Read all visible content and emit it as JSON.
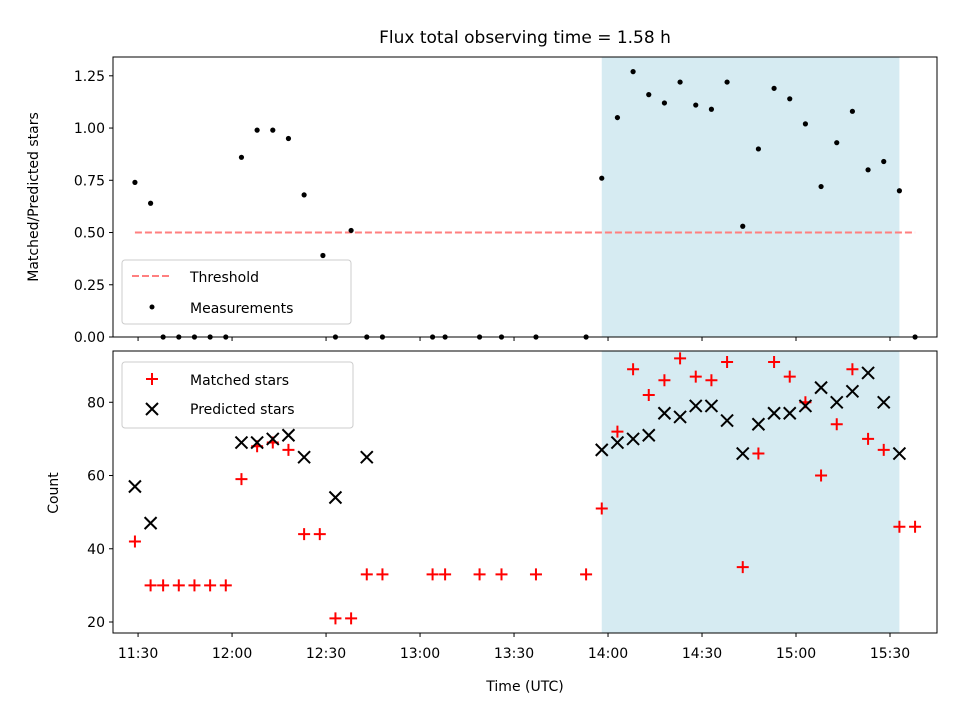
{
  "colors": {
    "threshold": "#ff7f7f",
    "measurement": "#000000",
    "matched": "#ff0000",
    "predicted": "#000000",
    "highlight": "#add8e6"
  },
  "chart_data": [
    {
      "type": "scatter",
      "title": "Flux total observing time = 1.58 h",
      "xlabel": "",
      "ylabel": "Matched/Predicted stars",
      "xlim": [
        "11:22",
        "15:45"
      ],
      "ylim": [
        0,
        1.34
      ],
      "y_ticks": [
        "0.00",
        "0.25",
        "0.50",
        "0.75",
        "1.00",
        "1.25"
      ],
      "highlight_span": [
        "13:58",
        "15:33"
      ],
      "legend": {
        "placement": "lower-left",
        "entries": [
          "Threshold",
          "Measurements"
        ]
      },
      "threshold": {
        "name": "Threshold",
        "value": 0.5,
        "x": [
          "11:29",
          "15:38"
        ],
        "style": "dashed"
      },
      "series": [
        {
          "name": "Measurements",
          "marker": "dot",
          "x": [
            "11:29",
            "11:34",
            "11:38",
            "11:43",
            "11:48",
            "11:53",
            "11:58",
            "12:03",
            "12:08",
            "12:13",
            "12:18",
            "12:23",
            "12:29",
            "12:33",
            "12:38",
            "12:43",
            "12:48",
            "13:04",
            "13:08",
            "13:19",
            "13:26",
            "13:37",
            "13:53",
            "13:58",
            "14:03",
            "14:08",
            "14:13",
            "14:18",
            "14:23",
            "14:28",
            "14:33",
            "14:38",
            "14:43",
            "14:48",
            "14:53",
            "14:58",
            "15:03",
            "15:08",
            "15:13",
            "15:18",
            "15:23",
            "15:28",
            "15:33",
            "15:38"
          ],
          "y": [
            0.74,
            0.64,
            0,
            0,
            0,
            0,
            0,
            0.86,
            0.99,
            0.99,
            0.95,
            0.68,
            0.39,
            0,
            0.51,
            0,
            0,
            0,
            0,
            0,
            0,
            0,
            0,
            0.76,
            1.05,
            1.27,
            1.16,
            1.12,
            1.22,
            1.11,
            1.09,
            1.22,
            0.53,
            0.9,
            1.19,
            1.14,
            1.02,
            0.72,
            0.93,
            1.08,
            0.8,
            0.84,
            0.7,
            0
          ]
        }
      ]
    },
    {
      "type": "scatter",
      "xlabel": "Time (UTC)",
      "ylabel": "Count",
      "xlim": [
        "11:22",
        "15:45"
      ],
      "ylim": [
        17,
        94
      ],
      "x_ticks": [
        "11:30",
        "12:00",
        "12:30",
        "13:00",
        "13:30",
        "14:00",
        "14:30",
        "15:00",
        "15:30"
      ],
      "y_ticks": [
        "20",
        "40",
        "60",
        "80"
      ],
      "highlight_span": [
        "13:58",
        "15:33"
      ],
      "legend": {
        "placement": "upper-left",
        "entries": [
          "Matched stars",
          "Predicted stars"
        ]
      },
      "series": [
        {
          "name": "Matched stars",
          "marker": "plus",
          "x": [
            "11:29",
            "11:34",
            "11:38",
            "11:43",
            "11:48",
            "11:53",
            "11:58",
            "12:03",
            "12:08",
            "12:13",
            "12:18",
            "12:23",
            "12:28",
            "12:33",
            "12:38",
            "12:43",
            "12:48",
            "13:04",
            "13:08",
            "13:19",
            "13:26",
            "13:37",
            "13:53",
            "13:58",
            "14:03",
            "14:08",
            "14:13",
            "14:18",
            "14:23",
            "14:28",
            "14:33",
            "14:38",
            "14:43",
            "14:48",
            "14:53",
            "14:58",
            "15:03",
            "15:08",
            "15:13",
            "15:18",
            "15:23",
            "15:28",
            "15:33",
            "15:38"
          ],
          "y": [
            42,
            30,
            30,
            30,
            30,
            30,
            30,
            59,
            68,
            69,
            67,
            44,
            44,
            21,
            21,
            33,
            33,
            33,
            33,
            33,
            33,
            33,
            33,
            51,
            72,
            89,
            82,
            86,
            92,
            87,
            86,
            91,
            35,
            66,
            91,
            87,
            80,
            60,
            74,
            89,
            70,
            67,
            46,
            46
          ]
        },
        {
          "name": "Predicted stars",
          "marker": "x",
          "x": [
            "11:29",
            "11:34",
            "12:03",
            "12:08",
            "12:13",
            "12:18",
            "12:23",
            "12:33",
            "12:43",
            "13:58",
            "14:03",
            "14:08",
            "14:13",
            "14:18",
            "14:23",
            "14:28",
            "14:33",
            "14:38",
            "14:43",
            "14:48",
            "14:53",
            "14:58",
            "15:03",
            "15:08",
            "15:13",
            "15:18",
            "15:23",
            "15:28",
            "15:33"
          ],
          "y": [
            57,
            47,
            69,
            69,
            70,
            71,
            65,
            54,
            65,
            67,
            69,
            70,
            71,
            77,
            76,
            79,
            79,
            75,
            66,
            74,
            77,
            77,
            79,
            84,
            80,
            83,
            88,
            80,
            66
          ]
        }
      ]
    }
  ]
}
